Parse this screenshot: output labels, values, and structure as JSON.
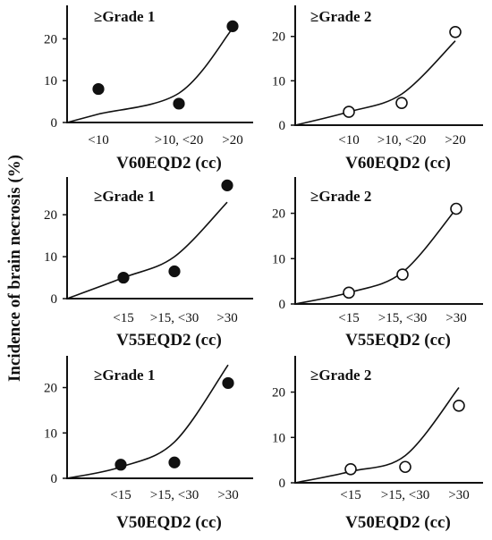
{
  "figure": {
    "ylabel": "Incidence of brain necrosis (%)"
  },
  "chart_data": [
    {
      "type": "scatter",
      "grade_label": "≥Grade 1",
      "xlabel": "V60EQD2 (cc)",
      "categories": [
        "<10",
        ">10, <20",
        ">20"
      ],
      "values": [
        8,
        4.5,
        23
      ],
      "yticks": [
        0,
        10,
        20
      ],
      "ylim": [
        0,
        28
      ],
      "marker": "filled",
      "curve": [
        0,
        2,
        7,
        22.5
      ]
    },
    {
      "type": "scatter",
      "grade_label": "≥Grade 2",
      "xlabel": "V60EQD2 (cc)",
      "categories": [
        "<10",
        ">10, <20",
        ">20"
      ],
      "values": [
        3,
        5,
        21
      ],
      "yticks": [
        0,
        10,
        20
      ],
      "ylim": [
        0,
        27
      ],
      "marker": "open",
      "curve": [
        0,
        3,
        7,
        19
      ]
    },
    {
      "type": "scatter",
      "grade_label": "≥Grade 1",
      "xlabel": "V55EQD2 (cc)",
      "categories": [
        "<15",
        ">15, <30",
        ">30"
      ],
      "values": [
        5,
        6.5,
        27
      ],
      "yticks": [
        0,
        10,
        20
      ],
      "ylim": [
        0,
        29
      ],
      "marker": "filled",
      "curve": [
        0,
        5,
        10,
        23
      ]
    },
    {
      "type": "scatter",
      "grade_label": "≥Grade 2",
      "xlabel": "V55EQD2 (cc)",
      "categories": [
        "<15",
        ">15, <30",
        ">30"
      ],
      "values": [
        2.5,
        6.5,
        21
      ],
      "yticks": [
        0,
        10,
        20
      ],
      "ylim": [
        0,
        28
      ],
      "marker": "open",
      "curve": [
        0,
        2.5,
        7,
        21
      ]
    },
    {
      "type": "scatter",
      "grade_label": "≥Grade 1",
      "xlabel": "V50EQD2 (cc)",
      "categories": [
        "<15",
        ">15, <30",
        ">30"
      ],
      "values": [
        3,
        3.5,
        21
      ],
      "yticks": [
        0,
        10,
        20
      ],
      "ylim": [
        0,
        27
      ],
      "marker": "filled",
      "curve": [
        0,
        2.5,
        8,
        25
      ]
    },
    {
      "type": "scatter",
      "grade_label": "≥Grade 2",
      "xlabel": "V50EQD2 (cc)",
      "categories": [
        "<15",
        ">15, <30",
        ">30"
      ],
      "values": [
        3,
        3.5,
        17
      ],
      "yticks": [
        0,
        10,
        20
      ],
      "ylim": [
        0,
        28
      ],
      "marker": "open",
      "curve": [
        0,
        2.5,
        6,
        21
      ]
    }
  ]
}
